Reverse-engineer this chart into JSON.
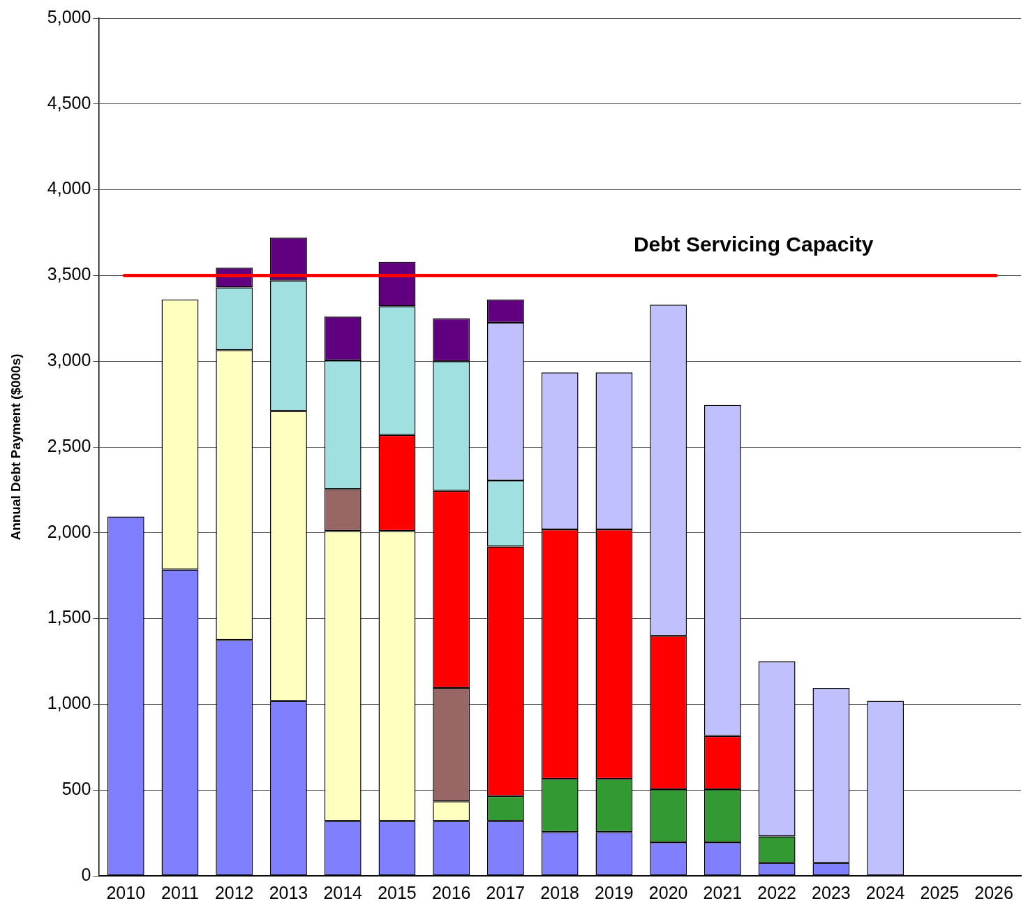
{
  "chart_data": {
    "type": "bar",
    "stacked": true,
    "ylabel": "Annual Debt Payment ($000s)",
    "categories": [
      "2010",
      "2011",
      "2012",
      "2013",
      "2014",
      "2015",
      "2016",
      "2017",
      "2018",
      "2019",
      "2020",
      "2021",
      "2022",
      "2023",
      "2024",
      "2025",
      "2026"
    ],
    "ylim": [
      0,
      5000
    ],
    "yticks": [
      0,
      500,
      {
        "value": 1000,
        "label": "1,000"
      },
      {
        "value": 1500,
        "label": "1,500"
      },
      {
        "value": 2000,
        "label": "2,000"
      },
      {
        "value": 2500,
        "label": "2,500"
      },
      {
        "value": 3000,
        "label": "3,000"
      },
      {
        "value": 3500,
        "label": "3,500"
      },
      {
        "value": 4000,
        "label": "4,000"
      },
      {
        "value": 4500,
        "label": "4,500"
      },
      {
        "value": 5000,
        "label": "5,000"
      }
    ],
    "grid": "y",
    "legend": false,
    "series": [
      {
        "color": "#8080ff",
        "values": [
          2095,
          1785,
          1375,
          1020,
          320,
          320,
          320,
          320,
          255,
          255,
          195,
          195,
          75,
          75,
          0,
          null,
          null
        ]
      },
      {
        "color": "#339933",
        "values": [
          null,
          null,
          null,
          null,
          null,
          null,
          null,
          145,
          310,
          310,
          310,
          310,
          155,
          null,
          null,
          null,
          null
        ]
      },
      {
        "color": "#ffffc0",
        "values": [
          null,
          1575,
          1690,
          1690,
          1690,
          1690,
          115,
          null,
          null,
          null,
          null,
          null,
          null,
          null,
          null,
          null,
          null
        ]
      },
      {
        "color": "#996666",
        "values": [
          null,
          null,
          null,
          null,
          245,
          null,
          660,
          null,
          null,
          null,
          null,
          null,
          null,
          null,
          null,
          null,
          null
        ]
      },
      {
        "color": "#ff0000",
        "values": [
          null,
          null,
          null,
          null,
          null,
          560,
          1150,
          1455,
          1455,
          1455,
          895,
          310,
          null,
          null,
          null,
          null,
          null
        ]
      },
      {
        "color": "#a0e0e0",
        "values": [
          null,
          null,
          365,
          760,
          750,
          750,
          755,
          385,
          null,
          null,
          null,
          null,
          null,
          null,
          null,
          null,
          null
        ]
      },
      {
        "color": "#c0c0ff",
        "values": [
          null,
          null,
          null,
          null,
          null,
          null,
          null,
          920,
          915,
          915,
          1930,
          1930,
          1020,
          1020,
          1020,
          null,
          null
        ]
      },
      {
        "color": "#600080",
        "values": [
          null,
          null,
          115,
          250,
          255,
          260,
          250,
          135,
          null,
          null,
          null,
          null,
          null,
          null,
          null,
          null,
          null
        ]
      }
    ],
    "ref_lines": [
      {
        "axis": "y",
        "value": 3500,
        "label": "Debt Servicing Capacity",
        "color": "#ff0000"
      }
    ]
  }
}
